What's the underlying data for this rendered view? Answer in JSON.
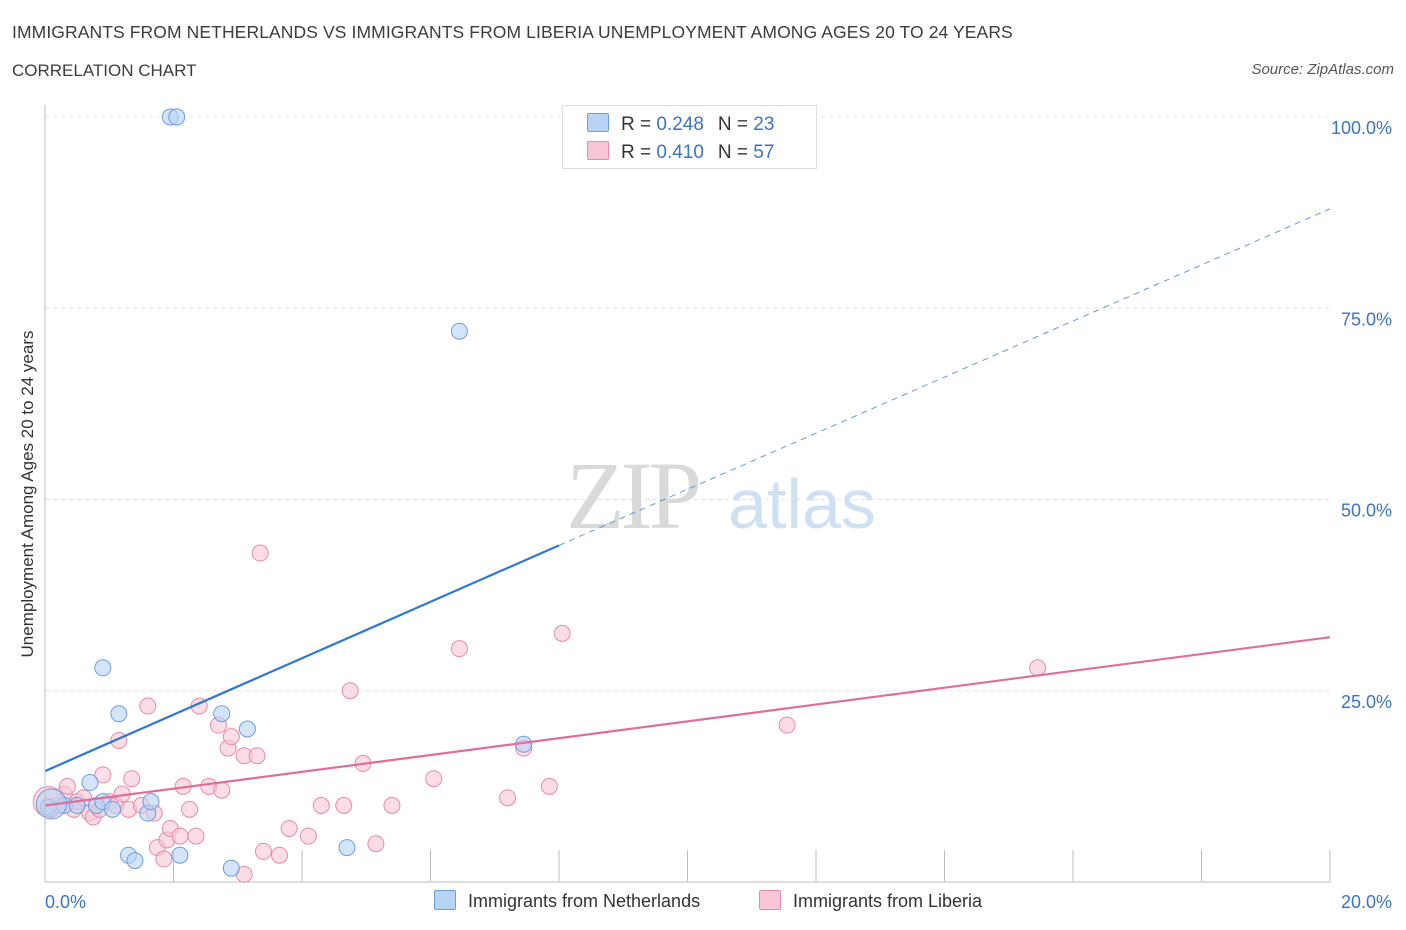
{
  "header": {
    "title": "IMMIGRANTS FROM NETHERLANDS VS IMMIGRANTS FROM LIBERIA UNEMPLOYMENT AMONG AGES 20 TO 24 YEARS",
    "subtitle": "CORRELATION CHART",
    "source": "Source: ZipAtlas.com"
  },
  "watermark": {
    "zip": "ZIP",
    "atlas": "atlas"
  },
  "legend": {
    "netherlands": {
      "r_label": "R = ",
      "r_value": "0.248",
      "n_label": "N = ",
      "n_value": "23"
    },
    "liberia": {
      "r_label": "R = ",
      "r_value": "0.410",
      "n_label": "N = ",
      "n_value": "57"
    }
  },
  "colors": {
    "blue_fill": "#b9d3f5",
    "blue_stroke": "#6c9de0",
    "blue_line": "#2f78d0",
    "pink_fill": "#f8c6d6",
    "pink_stroke": "#e88aa8",
    "pink_line": "#e06e9c",
    "axis_text": "#3a75c4",
    "grid": "#e2e2e2"
  },
  "chart_data": {
    "type": "scatter",
    "title": "IMMIGRANTS FROM NETHERLANDS VS IMMIGRANTS FROM LIBERIA UNEMPLOYMENT AMONG AGES 20 TO 24 YEARS",
    "xlabel": "",
    "ylabel": "Unemployment Among Ages 20 to 24 years",
    "xlim": [
      0,
      20
    ],
    "ylim": [
      0,
      100
    ],
    "x_tick_labels": [
      {
        "value": 0,
        "label": "0.0%"
      },
      {
        "value": 20,
        "label": "20.0%"
      }
    ],
    "y_tick_labels": [
      {
        "value": 25,
        "label": "25.0%"
      },
      {
        "value": 50,
        "label": "50.0%"
      },
      {
        "value": 75,
        "label": "75.0%"
      },
      {
        "value": 100,
        "label": "100.0%"
      }
    ],
    "grid": true,
    "series": [
      {
        "name": "Immigrants from Netherlands",
        "color": "blue",
        "points": [
          [
            0.05,
            9.8
          ],
          [
            0.3,
            10.0
          ],
          [
            0.5,
            10.0
          ],
          [
            0.7,
            13.0
          ],
          [
            0.8,
            10.0
          ],
          [
            0.9,
            10.5
          ],
          [
            0.9,
            28.0
          ],
          [
            1.05,
            9.5
          ],
          [
            1.15,
            22.0
          ],
          [
            1.3,
            3.5
          ],
          [
            1.4,
            2.8
          ],
          [
            1.6,
            9.0
          ],
          [
            1.65,
            10.5
          ],
          [
            1.95,
            100.0
          ],
          [
            2.05,
            100.0
          ],
          [
            2.1,
            3.5
          ],
          [
            2.75,
            22.0
          ],
          [
            2.9,
            1.8
          ],
          [
            3.15,
            20.0
          ],
          [
            4.7,
            4.5
          ],
          [
            6.45,
            72.0
          ],
          [
            7.45,
            18.0
          ],
          [
            0.1,
            10.2
          ]
        ],
        "trend": {
          "x": [
            0,
            8
          ],
          "y": [
            14.5,
            44.0
          ],
          "dashed_extension": {
            "x": [
              8,
              20
            ],
            "y": [
              44.0,
              88.0
            ]
          }
        }
      },
      {
        "name": "Immigrants from Liberia",
        "color": "pink",
        "points": [
          [
            0.1,
            9.5
          ],
          [
            0.2,
            10.0
          ],
          [
            0.3,
            11.5
          ],
          [
            0.35,
            12.5
          ],
          [
            0.45,
            9.5
          ],
          [
            0.5,
            10.5
          ],
          [
            0.6,
            11.0
          ],
          [
            0.7,
            9.0
          ],
          [
            0.75,
            8.5
          ],
          [
            0.85,
            9.5
          ],
          [
            0.9,
            14.0
          ],
          [
            1.0,
            10.5
          ],
          [
            1.1,
            10.0
          ],
          [
            1.15,
            18.5
          ],
          [
            1.2,
            11.5
          ],
          [
            1.3,
            9.5
          ],
          [
            1.35,
            13.5
          ],
          [
            1.5,
            10.0
          ],
          [
            1.6,
            23.0
          ],
          [
            1.7,
            9.0
          ],
          [
            1.75,
            4.5
          ],
          [
            1.85,
            3.0
          ],
          [
            1.9,
            5.5
          ],
          [
            1.95,
            7.0
          ],
          [
            2.1,
            6.0
          ],
          [
            2.15,
            12.5
          ],
          [
            2.25,
            9.5
          ],
          [
            2.35,
            6.0
          ],
          [
            2.4,
            23.0
          ],
          [
            2.55,
            12.5
          ],
          [
            2.7,
            20.5
          ],
          [
            2.75,
            12.0
          ],
          [
            2.85,
            17.5
          ],
          [
            2.9,
            19.0
          ],
          [
            3.1,
            1.0
          ],
          [
            3.1,
            16.5
          ],
          [
            3.3,
            16.5
          ],
          [
            3.35,
            43.0
          ],
          [
            3.4,
            4.0
          ],
          [
            3.65,
            3.5
          ],
          [
            3.8,
            7.0
          ],
          [
            4.1,
            6.0
          ],
          [
            4.3,
            10.0
          ],
          [
            4.65,
            10.0
          ],
          [
            4.75,
            25.0
          ],
          [
            4.95,
            15.5
          ],
          [
            5.15,
            5.0
          ],
          [
            5.4,
            10.0
          ],
          [
            6.05,
            13.5
          ],
          [
            6.45,
            30.5
          ],
          [
            7.2,
            11.0
          ],
          [
            7.45,
            17.5
          ],
          [
            7.85,
            12.5
          ],
          [
            8.05,
            32.5
          ],
          [
            11.55,
            20.5
          ],
          [
            15.45,
            28.0
          ],
          [
            0.05,
            10.5
          ]
        ],
        "trend": {
          "x": [
            0,
            20
          ],
          "y": [
            10.0,
            32.0
          ]
        }
      }
    ]
  },
  "bottom_legend": {
    "netherlands": "Immigrants from Netherlands",
    "liberia": "Immigrants from Liberia"
  }
}
